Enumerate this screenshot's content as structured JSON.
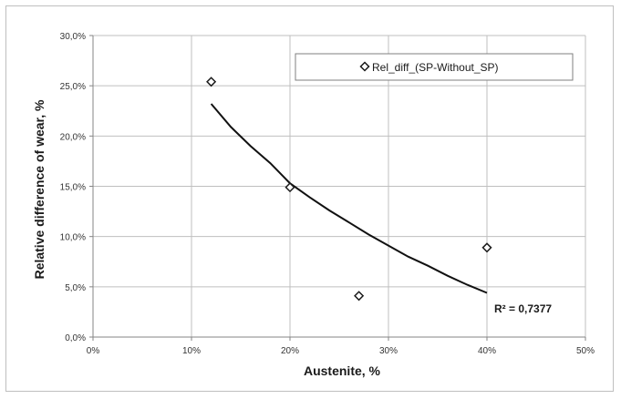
{
  "chart_data": {
    "type": "scatter",
    "xlabel": "Austenite, %",
    "ylabel": "Relative difference of wear, %",
    "xlim": [
      0,
      50
    ],
    "ylim": [
      0,
      30
    ],
    "x_ticks": [
      0,
      10,
      20,
      30,
      40,
      50
    ],
    "x_tick_labels": [
      "0%",
      "10%",
      "20%",
      "30%",
      "40%",
      "50%"
    ],
    "y_ticks": [
      0,
      5,
      10,
      15,
      20,
      25,
      30
    ],
    "y_tick_labels": [
      "0,0%",
      "5,0%",
      "10,0%",
      "15,0%",
      "20,0%",
      "25,0%",
      "30,0%"
    ],
    "grid": true,
    "legend_position": "top-right",
    "series": [
      {
        "name": "Rel_diff_(SP-Without_SP)",
        "marker": "diamond-open",
        "points": [
          {
            "x": 12,
            "y": 25.4
          },
          {
            "x": 20,
            "y": 14.9
          },
          {
            "x": 27,
            "y": 4.1
          },
          {
            "x": 40,
            "y": 8.9
          }
        ]
      }
    ],
    "trendline": {
      "type": "logarithmic",
      "x_range": [
        12,
        40
      ],
      "points": [
        {
          "x": 12,
          "y": 23.2
        },
        {
          "x": 14,
          "y": 20.9
        },
        {
          "x": 16,
          "y": 19.0
        },
        {
          "x": 18,
          "y": 17.3
        },
        {
          "x": 20,
          "y": 15.3
        },
        {
          "x": 22,
          "y": 13.9
        },
        {
          "x": 24,
          "y": 12.6
        },
        {
          "x": 26,
          "y": 11.4
        },
        {
          "x": 28,
          "y": 10.2
        },
        {
          "x": 30,
          "y": 9.1
        },
        {
          "x": 32,
          "y": 8.0
        },
        {
          "x": 34,
          "y": 7.1
        },
        {
          "x": 36,
          "y": 6.1
        },
        {
          "x": 38,
          "y": 5.2
        },
        {
          "x": 40,
          "y": 4.4
        }
      ],
      "r_squared_label": "R² = 0,7377"
    },
    "colors": {
      "marker": "#1a1a1a",
      "trendline": "#111111",
      "grid": "#bfbfbf",
      "axis": "#868686"
    }
  }
}
